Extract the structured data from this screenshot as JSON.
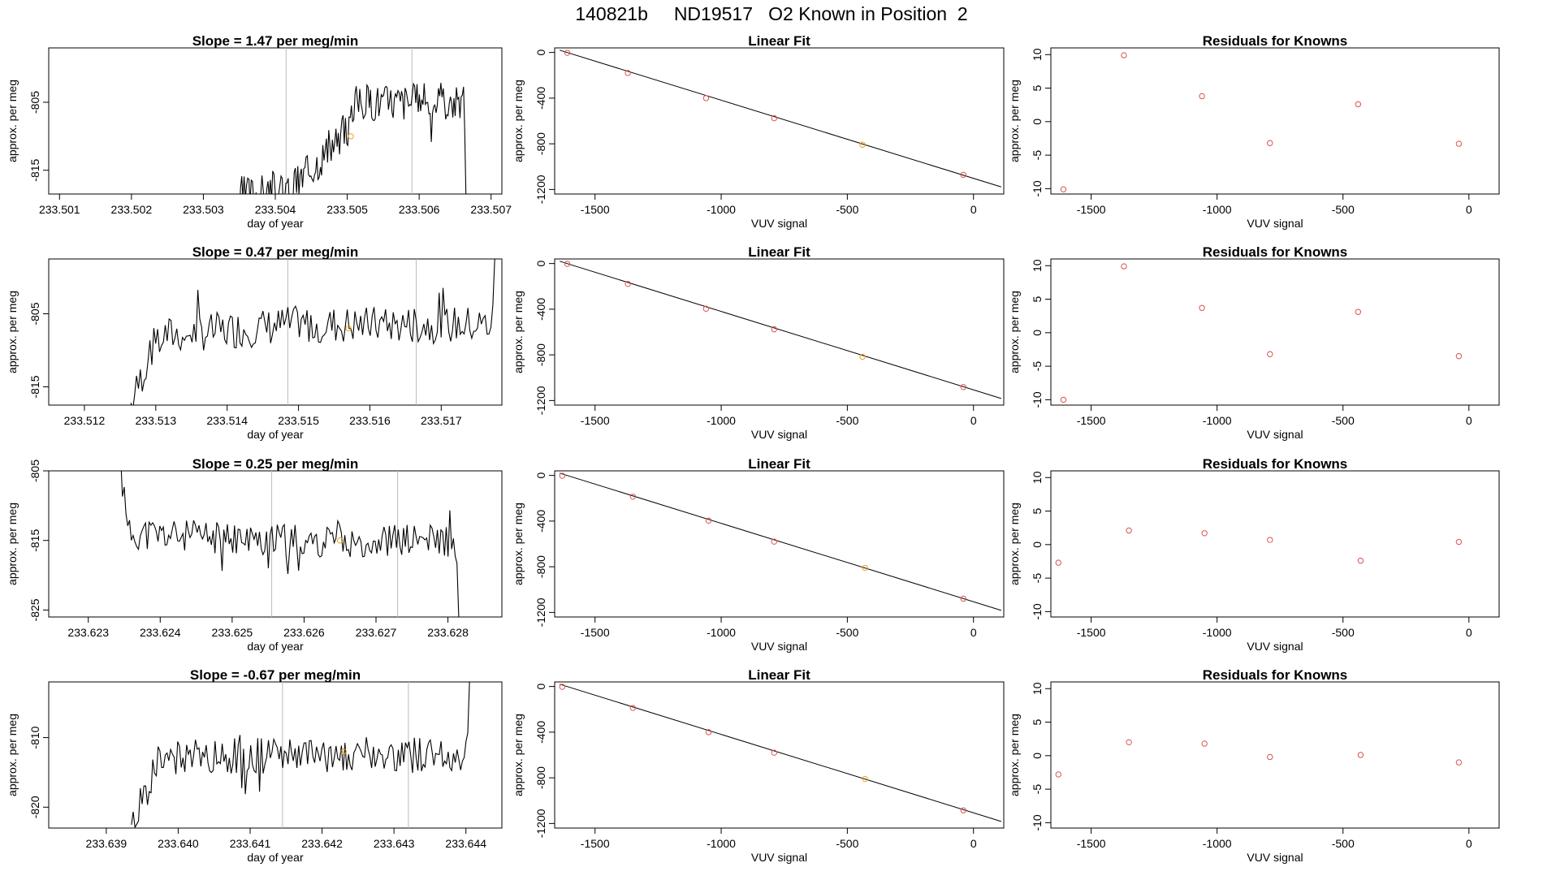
{
  "page": {
    "title": "140821b     ND19517   O2 Known in Position  2"
  },
  "common": {
    "series_ylabel": "approx. per meg",
    "series_xlabel": "day of year",
    "fit_title": "Linear Fit",
    "fit_xlabel": "VUV signal",
    "fit_ylabel": "approx. per meg",
    "resid_title": "Residuals for Knowns",
    "resid_xlabel": "VUV signal",
    "resid_ylabel": "approx. per meg",
    "fit_xticks": [
      -1500,
      -1000,
      -500,
      0
    ],
    "fit_xtick_labels": [
      "-1500",
      "-1000",
      "-500",
      "0"
    ],
    "fit_yticks": [
      0,
      -400,
      -800,
      -1200
    ],
    "fit_ytick_labels": [
      "0",
      "-400",
      "-800",
      "-1200"
    ],
    "resid_yticks": [
      10,
      5,
      0,
      -5,
      -10
    ],
    "resid_ytick_labels": [
      "10",
      "5",
      "0",
      "-5",
      "-10"
    ],
    "fit_xlim": [
      -1660,
      120
    ],
    "fit_ylim": [
      -1240,
      40
    ],
    "resid_xlim": [
      -1660,
      120
    ],
    "resid_ylim": [
      -10.8,
      11
    ],
    "colors": {
      "line": "#000000",
      "marker": "#d9534f",
      "marker_highlight": "#f0a020",
      "vline": "#bbbbbb",
      "axis": "#000000"
    }
  },
  "chart_data": [
    {
      "row": 1,
      "series": {
        "type": "line",
        "title": "Slope =  1.47  per meg/min",
        "xlabel": "day of year",
        "ylabel": "approx. per meg",
        "xlim": [
          233.50085,
          233.50715
        ],
        "ylim": [
          -818.5,
          -797
        ],
        "xticks": [
          233.501,
          233.502,
          233.503,
          233.504,
          233.505,
          233.506,
          233.507
        ],
        "xtick_labels": [
          "233.501",
          "233.502",
          "233.503",
          "233.504",
          "233.505",
          "233.506",
          "233.507"
        ],
        "yticks": [
          -815,
          -805
        ],
        "ytick_labels": [
          "-815",
          "-805"
        ],
        "x_start": 233.5035,
        "x_end": 233.50665,
        "y_start": -818.5,
        "y_rise_end": 233.5042,
        "base_start": -818,
        "base_end": -807,
        "base_late": -804,
        "amplitude": 2.8,
        "seed": 3,
        "drop_end": -818.5,
        "vlines": [
          233.50415,
          233.5059
        ],
        "highlight": {
          "x": 233.50505,
          "y": -810
        }
      },
      "fit": {
        "type": "scatter",
        "title": "Linear Fit",
        "x": [
          -1610,
          -1370,
          -1060,
          -790,
          -440,
          -40
        ],
        "y": [
          -3,
          -180,
          -400,
          -576,
          -808,
          -1072
        ],
        "highlight_index": 4,
        "line": {
          "x": [
            -1640,
            110
          ],
          "y": [
            20,
            -1178
          ]
        }
      },
      "resid": {
        "type": "scatter",
        "title": "Residuals for Knowns",
        "x": [
          -1610,
          -1370,
          -1060,
          -790,
          -440,
          -40
        ],
        "y": [
          -10.1,
          9.9,
          3.8,
          -3.2,
          2.6,
          -3.3
        ]
      }
    },
    {
      "row": 2,
      "series": {
        "type": "line",
        "title": "Slope =  0.47  per meg/min",
        "xlabel": "day of year",
        "ylabel": "approx. per meg",
        "xlim": [
          233.5115,
          233.51785
        ],
        "ylim": [
          -817.5,
          -797.5
        ],
        "xticks": [
          233.512,
          233.513,
          233.514,
          233.515,
          233.516,
          233.517
        ],
        "xtick_labels": [
          "233.512",
          "233.513",
          "233.514",
          "233.515",
          "233.516",
          "233.517"
        ],
        "yticks": [
          -815,
          -805
        ],
        "ytick_labels": [
          "-815",
          "-805"
        ],
        "x_start": 233.51265,
        "x_end": 233.51775,
        "y_start": -817.5,
        "y_rise_end": 233.5131,
        "base_start": -808,
        "base_end": -806.5,
        "base_late": -806.5,
        "amplitude": 2.6,
        "seed": 7,
        "drop_end": -797.5,
        "vlines": [
          233.51485,
          233.51665
        ],
        "highlight": {
          "x": 233.5157,
          "y": -807
        }
      },
      "fit": {
        "type": "scatter",
        "title": "Linear Fit",
        "x": [
          -1610,
          -1370,
          -1060,
          -790,
          -440,
          -40
        ],
        "y": [
          -3,
          -178,
          -396,
          -576,
          -817,
          -1082
        ],
        "highlight_index": 4,
        "line": {
          "x": [
            -1640,
            110
          ],
          "y": [
            20,
            -1182
          ]
        }
      },
      "resid": {
        "type": "scatter",
        "title": "Residuals for Knowns",
        "x": [
          -1610,
          -1370,
          -1060,
          -790,
          -440,
          -40
        ],
        "y": [
          -10.0,
          9.9,
          3.7,
          -3.2,
          3.1,
          -3.5
        ]
      }
    },
    {
      "row": 3,
      "series": {
        "type": "line",
        "title": "Slope =  0.25  per meg/min",
        "xlabel": "day of year",
        "ylabel": "approx. per meg",
        "xlim": [
          233.62245,
          233.62875
        ],
        "ylim": [
          -826,
          -805
        ],
        "xticks": [
          233.623,
          233.624,
          233.625,
          233.626,
          233.627,
          233.628
        ],
        "xtick_labels": [
          "233.623",
          "233.624",
          "233.625",
          "233.626",
          "233.627",
          "233.628"
        ],
        "yticks": [
          -825,
          -815,
          -805
        ],
        "ytick_labels": [
          "-825",
          "-815",
          "-805"
        ],
        "x_start": 233.62345,
        "x_end": 233.62815,
        "y_start": -805,
        "y_rise_end": 233.6236,
        "base_start": -814,
        "base_end": -815,
        "base_late": -815,
        "amplitude": 2.4,
        "seed": 11,
        "drop_end": -826,
        "vlines": [
          233.62555,
          233.6273
        ],
        "highlight": {
          "x": 233.6265,
          "y": -815
        }
      },
      "fit": {
        "type": "scatter",
        "title": "Linear Fit",
        "x": [
          -1630,
          -1350,
          -1050,
          -790,
          -430,
          -40
        ],
        "y": [
          -3,
          -186,
          -396,
          -580,
          -810,
          -1080
        ],
        "highlight_index": 4,
        "line": {
          "x": [
            -1640,
            110
          ],
          "y": [
            20,
            -1182
          ]
        }
      },
      "resid": {
        "type": "scatter",
        "title": "Residuals for Knowns",
        "x": [
          -1630,
          -1350,
          -1050,
          -790,
          -430,
          -40
        ],
        "y": [
          -2.7,
          2.1,
          1.7,
          0.7,
          -2.4,
          0.4
        ]
      }
    },
    {
      "row": 4,
      "series": {
        "type": "line",
        "title": "Slope =  -0.67  per meg/min",
        "xlabel": "day of year",
        "ylabel": "approx. per meg",
        "xlim": [
          233.6382,
          233.6445
        ],
        "ylim": [
          -823,
          -802
        ],
        "xticks": [
          233.639,
          233.64,
          233.641,
          233.642,
          233.643,
          233.644
        ],
        "xtick_labels": [
          "233.639",
          "233.640",
          "233.641",
          "233.642",
          "233.643",
          "233.644"
        ],
        "yticks": [
          -820,
          -810
        ],
        "ytick_labels": [
          "-820",
          "-810"
        ],
        "x_start": 233.63935,
        "x_end": 233.64405,
        "y_start": -823,
        "y_rise_end": 233.6398,
        "base_start": -813,
        "base_end": -812.5,
        "base_late": -812.5,
        "amplitude": 2.6,
        "seed": 19,
        "drop_end": -802,
        "vlines": [
          233.64145,
          233.6432
        ],
        "highlight": {
          "x": 233.6423,
          "y": -812
        }
      },
      "fit": {
        "type": "scatter",
        "title": "Linear Fit",
        "x": [
          -1630,
          -1350,
          -1050,
          -790,
          -430,
          -40
        ],
        "y": [
          -3,
          -188,
          -400,
          -580,
          -810,
          -1085
        ],
        "highlight_index": 4,
        "line": {
          "x": [
            -1640,
            110
          ],
          "y": [
            20,
            -1182
          ]
        }
      },
      "resid": {
        "type": "scatter",
        "title": "Residuals for Knowns",
        "x": [
          -1630,
          -1350,
          -1050,
          -790,
          -430,
          -40
        ],
        "y": [
          -2.8,
          2.0,
          1.8,
          -0.2,
          0.1,
          -1.0
        ]
      }
    }
  ]
}
